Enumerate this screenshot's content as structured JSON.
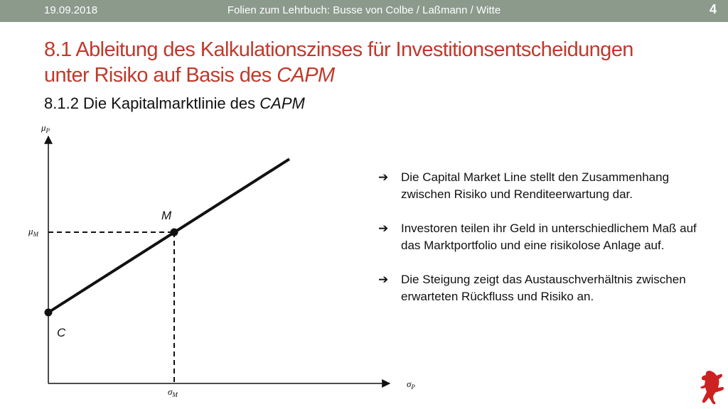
{
  "header": {
    "date": "19.09.2018",
    "center": "Folien zum Lehrbuch: Busse von Colbe / Laßmann / Witte",
    "page": "4"
  },
  "title": {
    "line1": "8.1 Ableitung des Kalkulationszinses für Investitionsentscheidungen",
    "line2_prefix": "unter Risiko auf Basis des ",
    "line2_italic": "CAPM"
  },
  "subtitle": {
    "prefix": "8.1.2 Die Kapitalmarktlinie des ",
    "italic": "CAPM"
  },
  "diagram": {
    "y_axis_label": "μ",
    "y_axis_sub": "P",
    "x_axis_label": "σ",
    "x_axis_sub": "P",
    "mu_m": "μ",
    "mu_m_sub": "M",
    "sigma_m": "σ",
    "sigma_m_sub": "M",
    "point_m": "M",
    "point_c": "C"
  },
  "bullets": [
    "Die Capital Market Line stellt den Zusammenhang zwischen Risiko und Renditeerwartung dar.",
    "Investoren teilen ihr Geld in unterschiedlichem Maß auf das Marktportfolio und eine risikolose Anlage auf.",
    "Die Steigung zeigt das Austauschverhältnis zwischen erwarteten Rückfluss und Risiko an."
  ],
  "bullet_arrow": "➔",
  "colors": {
    "header_bg": "#8c9a8c",
    "title": "#c0392b",
    "logo": "#cc2222"
  },
  "logo_icon": "berlin-bear-icon"
}
